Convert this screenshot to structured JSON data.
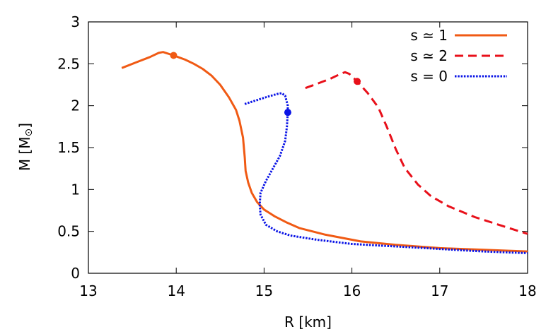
{
  "chart_data": {
    "type": "line",
    "xlabel": "R [km]",
    "ylabel": "M [M",
    "ylabel_symbol": "⊙",
    "ylabel_close": "]",
    "xlim": [
      13,
      18
    ],
    "ylim": [
      0,
      3
    ],
    "xticks": [
      13,
      14,
      15,
      16,
      17,
      18
    ],
    "yticks": [
      0,
      0.5,
      1,
      1.5,
      2,
      2.5,
      3
    ],
    "xtick_labels": [
      "13",
      "14",
      "15",
      "16",
      "17",
      "18"
    ],
    "ytick_labels": [
      "0",
      "0.5",
      "1",
      "1.5",
      "2",
      "2.5",
      "3"
    ],
    "grid": false,
    "legend_position": "top-right",
    "series": [
      {
        "name": "s ≃ 1",
        "color": "#f05a14",
        "dash": "solid",
        "marker": {
          "x": 13.97,
          "y": 2.6
        },
        "points": [
          [
            13.38,
            2.45
          ],
          [
            13.55,
            2.52
          ],
          [
            13.7,
            2.58
          ],
          [
            13.8,
            2.63
          ],
          [
            13.85,
            2.64
          ],
          [
            13.97,
            2.6
          ],
          [
            14.1,
            2.55
          ],
          [
            14.2,
            2.5
          ],
          [
            14.3,
            2.44
          ],
          [
            14.4,
            2.36
          ],
          [
            14.5,
            2.25
          ],
          [
            14.6,
            2.1
          ],
          [
            14.68,
            1.95
          ],
          [
            14.72,
            1.82
          ],
          [
            14.76,
            1.62
          ],
          [
            14.78,
            1.38
          ],
          [
            14.79,
            1.22
          ],
          [
            14.82,
            1.08
          ],
          [
            14.86,
            0.96
          ],
          [
            14.92,
            0.85
          ],
          [
            15.0,
            0.76
          ],
          [
            15.12,
            0.68
          ],
          [
            15.25,
            0.61
          ],
          [
            15.4,
            0.54
          ],
          [
            15.7,
            0.46
          ],
          [
            16.1,
            0.38
          ],
          [
            16.5,
            0.34
          ],
          [
            17.0,
            0.3
          ],
          [
            17.5,
            0.28
          ],
          [
            18.0,
            0.26
          ]
        ]
      },
      {
        "name": "s ≃ 2",
        "color": "#e8101a",
        "dash": "dashed",
        "marker": {
          "x": 16.06,
          "y": 2.29
        },
        "points": [
          [
            15.47,
            2.21
          ],
          [
            15.6,
            2.26
          ],
          [
            15.75,
            2.32
          ],
          [
            15.85,
            2.37
          ],
          [
            15.92,
            2.4
          ],
          [
            15.97,
            2.38
          ],
          [
            16.06,
            2.29
          ],
          [
            16.18,
            2.15
          ],
          [
            16.3,
            1.98
          ],
          [
            16.4,
            1.74
          ],
          [
            16.5,
            1.48
          ],
          [
            16.6,
            1.26
          ],
          [
            16.75,
            1.06
          ],
          [
            16.9,
            0.92
          ],
          [
            17.1,
            0.8
          ],
          [
            17.4,
            0.67
          ],
          [
            17.7,
            0.57
          ],
          [
            18.0,
            0.47
          ]
        ]
      },
      {
        "name": "s = 0",
        "color": "#0a14e6",
        "dash": "dotted",
        "marker": {
          "x": 15.27,
          "y": 1.92
        },
        "points": [
          [
            14.78,
            2.02
          ],
          [
            14.9,
            2.06
          ],
          [
            15.05,
            2.11
          ],
          [
            15.15,
            2.14
          ],
          [
            15.2,
            2.15
          ],
          [
            15.24,
            2.12
          ],
          [
            15.27,
            2.0
          ],
          [
            15.27,
            1.92
          ],
          [
            15.26,
            1.75
          ],
          [
            15.24,
            1.58
          ],
          [
            15.18,
            1.4
          ],
          [
            15.1,
            1.25
          ],
          [
            15.02,
            1.1
          ],
          [
            14.96,
            0.96
          ],
          [
            14.95,
            0.82
          ],
          [
            14.96,
            0.7
          ],
          [
            15.02,
            0.58
          ],
          [
            15.15,
            0.5
          ],
          [
            15.3,
            0.45
          ],
          [
            15.6,
            0.4
          ],
          [
            16.0,
            0.35
          ],
          [
            16.5,
            0.32
          ],
          [
            17.0,
            0.29
          ],
          [
            17.5,
            0.26
          ],
          [
            18.0,
            0.24
          ]
        ]
      }
    ]
  }
}
